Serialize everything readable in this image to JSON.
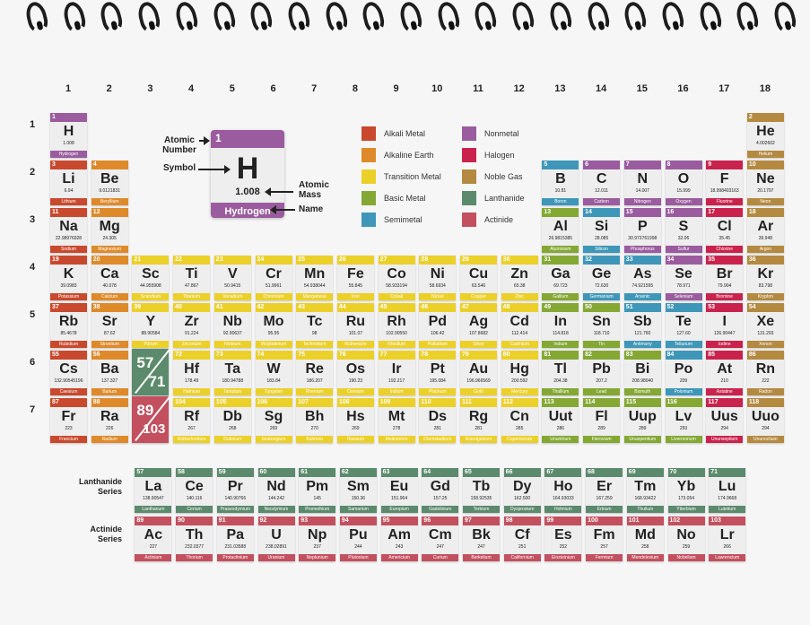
{
  "groups": [
    "1",
    "2",
    "3",
    "4",
    "5",
    "6",
    "7",
    "8",
    "9",
    "10",
    "11",
    "12",
    "13",
    "14",
    "15",
    "16",
    "17",
    "18"
  ],
  "periods": [
    "1",
    "2",
    "3",
    "4",
    "5",
    "6",
    "7"
  ],
  "colors": {
    "nonmetal": "#9a5c9e",
    "alkali": "#c8492d",
    "alkaline": "#de8a2a",
    "transition": "#ecd02a",
    "basic": "#84a833",
    "semimetal": "#3e97b8",
    "halogen": "#c9234d",
    "noble": "#b38a40",
    "lanthanide": "#5c8a6c",
    "actinide": "#c2505e"
  },
  "key": {
    "number": "1",
    "symbol": "H",
    "mass": "1.008",
    "name": "Hydrogen",
    "atomic_number_label": "Atomic Number",
    "symbol_label": "Symbol",
    "atomic_mass_label": "Atomic Mass",
    "name_label": "Name"
  },
  "legend": [
    {
      "label": "Alkali Metal",
      "cat": "alkali"
    },
    {
      "label": "Alkaline Earth",
      "cat": "alkaline"
    },
    {
      "label": "Transition Metal",
      "cat": "transition"
    },
    {
      "label": "Basic Metal",
      "cat": "basic"
    },
    {
      "label": "Semimetal",
      "cat": "semimetal"
    },
    {
      "label": "Nonmetal",
      "cat": "nonmetal"
    },
    {
      "label": "Halogen",
      "cat": "halogen"
    },
    {
      "label": "Noble Gas",
      "cat": "noble"
    },
    {
      "label": "Lanthanide",
      "cat": "lanthanide"
    },
    {
      "label": "Actinide",
      "cat": "actinide"
    }
  ],
  "placeholders": [
    {
      "a": "57",
      "b": "71",
      "cat": "lanthanide"
    },
    {
      "a": "89",
      "b": "103",
      "cat": "actinide"
    }
  ],
  "series_labels": {
    "lanthanide": "Lanthanide Series",
    "actinide": "Actinide Series"
  },
  "elements": [
    {
      "n": "1",
      "s": "H",
      "m": "1.008",
      "name": "Hydrogen",
      "g": 1,
      "p": 1,
      "cat": "nonmetal"
    },
    {
      "n": "2",
      "s": "He",
      "m": "4.002602",
      "name": "Helium",
      "g": 18,
      "p": 1,
      "cat": "noble"
    },
    {
      "n": "3",
      "s": "Li",
      "m": "6.94",
      "name": "Lithium",
      "g": 1,
      "p": 2,
      "cat": "alkali"
    },
    {
      "n": "4",
      "s": "Be",
      "m": "9.0121831",
      "name": "Beryllium",
      "g": 2,
      "p": 2,
      "cat": "alkaline"
    },
    {
      "n": "5",
      "s": "B",
      "m": "10.81",
      "name": "Boron",
      "g": 13,
      "p": 2,
      "cat": "semimetal"
    },
    {
      "n": "6",
      "s": "C",
      "m": "12.011",
      "name": "Carbon",
      "g": 14,
      "p": 2,
      "cat": "nonmetal"
    },
    {
      "n": "7",
      "s": "N",
      "m": "14.007",
      "name": "Nitrogen",
      "g": 15,
      "p": 2,
      "cat": "nonmetal"
    },
    {
      "n": "8",
      "s": "O",
      "m": "15.999",
      "name": "Oxygen",
      "g": 16,
      "p": 2,
      "cat": "nonmetal"
    },
    {
      "n": "9",
      "s": "F",
      "m": "18.998403163",
      "name": "Fluorine",
      "g": 17,
      "p": 2,
      "cat": "halogen"
    },
    {
      "n": "10",
      "s": "Ne",
      "m": "20.1797",
      "name": "Neon",
      "g": 18,
      "p": 2,
      "cat": "noble"
    },
    {
      "n": "11",
      "s": "Na",
      "m": "22.98976928",
      "name": "Sodium",
      "g": 1,
      "p": 3,
      "cat": "alkali"
    },
    {
      "n": "12",
      "s": "Mg",
      "m": "24.305",
      "name": "Magnesium",
      "g": 2,
      "p": 3,
      "cat": "alkaline"
    },
    {
      "n": "13",
      "s": "Al",
      "m": "26.9815385",
      "name": "Aluminium",
      "g": 13,
      "p": 3,
      "cat": "basic"
    },
    {
      "n": "14",
      "s": "Si",
      "m": "28.085",
      "name": "Silicon",
      "g": 14,
      "p": 3,
      "cat": "semimetal"
    },
    {
      "n": "15",
      "s": "P",
      "m": "30.973761998",
      "name": "Phosphorus",
      "g": 15,
      "p": 3,
      "cat": "nonmetal"
    },
    {
      "n": "16",
      "s": "S",
      "m": "32.06",
      "name": "Sulfur",
      "g": 16,
      "p": 3,
      "cat": "nonmetal"
    },
    {
      "n": "17",
      "s": "Cl",
      "m": "35.45",
      "name": "Chlorine",
      "g": 17,
      "p": 3,
      "cat": "halogen"
    },
    {
      "n": "18",
      "s": "Ar",
      "m": "39.948",
      "name": "Argon",
      "g": 18,
      "p": 3,
      "cat": "noble"
    },
    {
      "n": "19",
      "s": "K",
      "m": "39.0983",
      "name": "Potassium",
      "g": 1,
      "p": 4,
      "cat": "alkali"
    },
    {
      "n": "20",
      "s": "Ca",
      "m": "40.078",
      "name": "Calcium",
      "g": 2,
      "p": 4,
      "cat": "alkaline"
    },
    {
      "n": "21",
      "s": "Sc",
      "m": "44.955908",
      "name": "Scandium",
      "g": 3,
      "p": 4,
      "cat": "transition"
    },
    {
      "n": "22",
      "s": "Ti",
      "m": "47.867",
      "name": "Titanium",
      "g": 4,
      "p": 4,
      "cat": "transition"
    },
    {
      "n": "23",
      "s": "V",
      "m": "50.9415",
      "name": "Vanadium",
      "g": 5,
      "p": 4,
      "cat": "transition"
    },
    {
      "n": "24",
      "s": "Cr",
      "m": "51.9961",
      "name": "Chromium",
      "g": 6,
      "p": 4,
      "cat": "transition"
    },
    {
      "n": "25",
      "s": "Mn",
      "m": "54.938044",
      "name": "Manganese",
      "g": 7,
      "p": 4,
      "cat": "transition"
    },
    {
      "n": "26",
      "s": "Fe",
      "m": "55.845",
      "name": "Iron",
      "g": 8,
      "p": 4,
      "cat": "transition"
    },
    {
      "n": "27",
      "s": "Co",
      "m": "58.933194",
      "name": "Cobalt",
      "g": 9,
      "p": 4,
      "cat": "transition"
    },
    {
      "n": "28",
      "s": "Ni",
      "m": "58.6934",
      "name": "Nickel",
      "g": 10,
      "p": 4,
      "cat": "transition"
    },
    {
      "n": "29",
      "s": "Cu",
      "m": "63.546",
      "name": "Copper",
      "g": 11,
      "p": 4,
      "cat": "transition"
    },
    {
      "n": "30",
      "s": "Zn",
      "m": "65.38",
      "name": "Zinc",
      "g": 12,
      "p": 4,
      "cat": "transition"
    },
    {
      "n": "31",
      "s": "Ga",
      "m": "69.723",
      "name": "Gallium",
      "g": 13,
      "p": 4,
      "cat": "basic"
    },
    {
      "n": "32",
      "s": "Ge",
      "m": "72.630",
      "name": "Germanium",
      "g": 14,
      "p": 4,
      "cat": "semimetal"
    },
    {
      "n": "33",
      "s": "As",
      "m": "74.921595",
      "name": "Arsenic",
      "g": 15,
      "p": 4,
      "cat": "semimetal"
    },
    {
      "n": "34",
      "s": "Se",
      "m": "78.971",
      "name": "Selenium",
      "g": 16,
      "p": 4,
      "cat": "nonmetal"
    },
    {
      "n": "35",
      "s": "Br",
      "m": "79.904",
      "name": "Bromine",
      "g": 17,
      "p": 4,
      "cat": "halogen"
    },
    {
      "n": "36",
      "s": "Kr",
      "m": "83.798",
      "name": "Krypton",
      "g": 18,
      "p": 4,
      "cat": "noble"
    },
    {
      "n": "37",
      "s": "Rb",
      "m": "85.4678",
      "name": "Rubidium",
      "g": 1,
      "p": 5,
      "cat": "alkali"
    },
    {
      "n": "38",
      "s": "Sr",
      "m": "87.62",
      "name": "Strontium",
      "g": 2,
      "p": 5,
      "cat": "alkaline"
    },
    {
      "n": "39",
      "s": "Y",
      "m": "88.90584",
      "name": "Yttrium",
      "g": 3,
      "p": 5,
      "cat": "transition"
    },
    {
      "n": "40",
      "s": "Zr",
      "m": "91.224",
      "name": "Zirconium",
      "g": 4,
      "p": 5,
      "cat": "transition"
    },
    {
      "n": "41",
      "s": "Nb",
      "m": "92.90637",
      "name": "Niobium",
      "g": 5,
      "p": 5,
      "cat": "transition"
    },
    {
      "n": "42",
      "s": "Mo",
      "m": "95.95",
      "name": "Molybdenum",
      "g": 6,
      "p": 5,
      "cat": "transition"
    },
    {
      "n": "43",
      "s": "Tc",
      "m": "98",
      "name": "Technetium",
      "g": 7,
      "p": 5,
      "cat": "transition"
    },
    {
      "n": "44",
      "s": "Ru",
      "m": "101.07",
      "name": "Ruthenium",
      "g": 8,
      "p": 5,
      "cat": "transition"
    },
    {
      "n": "45",
      "s": "Rh",
      "m": "102.90550",
      "name": "Rhodium",
      "g": 9,
      "p": 5,
      "cat": "transition"
    },
    {
      "n": "46",
      "s": "Pd",
      "m": "106.42",
      "name": "Palladium",
      "g": 10,
      "p": 5,
      "cat": "transition"
    },
    {
      "n": "47",
      "s": "Ag",
      "m": "107.8682",
      "name": "Silver",
      "g": 11,
      "p": 5,
      "cat": "transition"
    },
    {
      "n": "48",
      "s": "Cd",
      "m": "112.414",
      "name": "Cadmium",
      "g": 12,
      "p": 5,
      "cat": "transition"
    },
    {
      "n": "49",
      "s": "In",
      "m": "114.818",
      "name": "Indium",
      "g": 13,
      "p": 5,
      "cat": "basic"
    },
    {
      "n": "50",
      "s": "Sn",
      "m": "118.710",
      "name": "Tin",
      "g": 14,
      "p": 5,
      "cat": "basic"
    },
    {
      "n": "51",
      "s": "Sb",
      "m": "121.760",
      "name": "Antimony",
      "g": 15,
      "p": 5,
      "cat": "semimetal"
    },
    {
      "n": "52",
      "s": "Te",
      "m": "127.60",
      "name": "Tellurium",
      "g": 16,
      "p": 5,
      "cat": "semimetal"
    },
    {
      "n": "53",
      "s": "I",
      "m": "126.90447",
      "name": "Iodine",
      "g": 17,
      "p": 5,
      "cat": "halogen"
    },
    {
      "n": "54",
      "s": "Xe",
      "m": "131.293",
      "name": "Xenon",
      "g": 18,
      "p": 5,
      "cat": "noble"
    },
    {
      "n": "55",
      "s": "Cs",
      "m": "132.90545196",
      "name": "Caesium",
      "g": 1,
      "p": 6,
      "cat": "alkali"
    },
    {
      "n": "56",
      "s": "Ba",
      "m": "137.327",
      "name": "Barium",
      "g": 2,
      "p": 6,
      "cat": "alkaline"
    },
    {
      "n": "72",
      "s": "Hf",
      "m": "178.49",
      "name": "Hafnium",
      "g": 4,
      "p": 6,
      "cat": "transition"
    },
    {
      "n": "73",
      "s": "Ta",
      "m": "180.94788",
      "name": "Tantalum",
      "g": 5,
      "p": 6,
      "cat": "transition"
    },
    {
      "n": "74",
      "s": "W",
      "m": "183.84",
      "name": "Tungsten",
      "g": 6,
      "p": 6,
      "cat": "transition"
    },
    {
      "n": "75",
      "s": "Re",
      "m": "186.207",
      "name": "Rhenium",
      "g": 7,
      "p": 6,
      "cat": "transition"
    },
    {
      "n": "76",
      "s": "Os",
      "m": "190.23",
      "name": "Osmium",
      "g": 8,
      "p": 6,
      "cat": "transition"
    },
    {
      "n": "77",
      "s": "Ir",
      "m": "192.217",
      "name": "Iridium",
      "g": 9,
      "p": 6,
      "cat": "transition"
    },
    {
      "n": "78",
      "s": "Pt",
      "m": "195.084",
      "name": "Platinum",
      "g": 10,
      "p": 6,
      "cat": "transition"
    },
    {
      "n": "79",
      "s": "Au",
      "m": "196.966569",
      "name": "Gold",
      "g": 11,
      "p": 6,
      "cat": "transition"
    },
    {
      "n": "80",
      "s": "Hg",
      "m": "200.592",
      "name": "Mercury",
      "g": 12,
      "p": 6,
      "cat": "transition"
    },
    {
      "n": "81",
      "s": "Tl",
      "m": "204.38",
      "name": "Thallium",
      "g": 13,
      "p": 6,
      "cat": "basic"
    },
    {
      "n": "82",
      "s": "Pb",
      "m": "207.2",
      "name": "Lead",
      "g": 14,
      "p": 6,
      "cat": "basic"
    },
    {
      "n": "83",
      "s": "Bi",
      "m": "208.98040",
      "name": "Bismuth",
      "g": 15,
      "p": 6,
      "cat": "basic"
    },
    {
      "n": "84",
      "s": "Po",
      "m": "209",
      "name": "Polonium",
      "g": 16,
      "p": 6,
      "cat": "semimetal"
    },
    {
      "n": "85",
      "s": "At",
      "m": "210",
      "name": "Astatine",
      "g": 17,
      "p": 6,
      "cat": "halogen"
    },
    {
      "n": "86",
      "s": "Rn",
      "m": "222",
      "name": "Radon",
      "g": 18,
      "p": 6,
      "cat": "noble"
    },
    {
      "n": "87",
      "s": "Fr",
      "m": "223",
      "name": "Francium",
      "g": 1,
      "p": 7,
      "cat": "alkali"
    },
    {
      "n": "88",
      "s": "Ra",
      "m": "226",
      "name": "Radium",
      "g": 2,
      "p": 7,
      "cat": "alkaline"
    },
    {
      "n": "104",
      "s": "Rf",
      "m": "267",
      "name": "Rutherfordium",
      "g": 4,
      "p": 7,
      "cat": "transition"
    },
    {
      "n": "105",
      "s": "Db",
      "m": "268",
      "name": "Dubnium",
      "g": 5,
      "p": 7,
      "cat": "transition"
    },
    {
      "n": "106",
      "s": "Sg",
      "m": "269",
      "name": "Seaborgium",
      "g": 6,
      "p": 7,
      "cat": "transition"
    },
    {
      "n": "107",
      "s": "Bh",
      "m": "270",
      "name": "Bohrium",
      "g": 7,
      "p": 7,
      "cat": "transition"
    },
    {
      "n": "108",
      "s": "Hs",
      "m": "269",
      "name": "Hassium",
      "g": 8,
      "p": 7,
      "cat": "transition"
    },
    {
      "n": "109",
      "s": "Mt",
      "m": "278",
      "name": "Meitnerium",
      "g": 9,
      "p": 7,
      "cat": "transition"
    },
    {
      "n": "110",
      "s": "Ds",
      "m": "281",
      "name": "Darmstadtium",
      "g": 10,
      "p": 7,
      "cat": "transition"
    },
    {
      "n": "111",
      "s": "Rg",
      "m": "281",
      "name": "Roentgenium",
      "g": 11,
      "p": 7,
      "cat": "transition"
    },
    {
      "n": "112",
      "s": "Cn",
      "m": "285",
      "name": "Copernicium",
      "g": 12,
      "p": 7,
      "cat": "transition"
    },
    {
      "n": "113",
      "s": "Uut",
      "m": "286",
      "name": "Ununtrium",
      "g": 13,
      "p": 7,
      "cat": "basic"
    },
    {
      "n": "114",
      "s": "Fl",
      "m": "289",
      "name": "Flerovium",
      "g": 14,
      "p": 7,
      "cat": "basic"
    },
    {
      "n": "115",
      "s": "Uup",
      "m": "289",
      "name": "Ununpentium",
      "g": 15,
      "p": 7,
      "cat": "basic"
    },
    {
      "n": "116",
      "s": "Lv",
      "m": "293",
      "name": "Livermorium",
      "g": 16,
      "p": 7,
      "cat": "basic"
    },
    {
      "n": "117",
      "s": "Uus",
      "m": "294",
      "name": "Ununseptium",
      "g": 17,
      "p": 7,
      "cat": "halogen"
    },
    {
      "n": "118",
      "s": "Uuo",
      "m": "294",
      "name": "Ununoctium",
      "g": 18,
      "p": 7,
      "cat": "noble"
    }
  ],
  "lanthanides": [
    {
      "n": "57",
      "s": "La",
      "m": "138.90547",
      "name": "Lanthanum"
    },
    {
      "n": "58",
      "s": "Ce",
      "m": "140.116",
      "name": "Cerium"
    },
    {
      "n": "59",
      "s": "Pr",
      "m": "140.90766",
      "name": "Praseodymium"
    },
    {
      "n": "60",
      "s": "Nd",
      "m": "144.242",
      "name": "Neodymium"
    },
    {
      "n": "61",
      "s": "Pm",
      "m": "145",
      "name": "Promethium"
    },
    {
      "n": "62",
      "s": "Sm",
      "m": "150.36",
      "name": "Samarium"
    },
    {
      "n": "63",
      "s": "Eu",
      "m": "151.964",
      "name": "Europium"
    },
    {
      "n": "64",
      "s": "Gd",
      "m": "157.25",
      "name": "Gadolinium"
    },
    {
      "n": "65",
      "s": "Tb",
      "m": "158.92535",
      "name": "Terbium"
    },
    {
      "n": "66",
      "s": "Dy",
      "m": "162.500",
      "name": "Dysprosium"
    },
    {
      "n": "67",
      "s": "Ho",
      "m": "164.93033",
      "name": "Holmium"
    },
    {
      "n": "68",
      "s": "Er",
      "m": "167.259",
      "name": "Erbium"
    },
    {
      "n": "69",
      "s": "Tm",
      "m": "168.93422",
      "name": "Thulium"
    },
    {
      "n": "70",
      "s": "Yb",
      "m": "173.054",
      "name": "Ytterbium"
    },
    {
      "n": "71",
      "s": "Lu",
      "m": "174.9668",
      "name": "Lutetium"
    }
  ],
  "actinides": [
    {
      "n": "89",
      "s": "Ac",
      "m": "227",
      "name": "Actinium"
    },
    {
      "n": "90",
      "s": "Th",
      "m": "232.0377",
      "name": "Thorium"
    },
    {
      "n": "91",
      "s": "Pa",
      "m": "231.03588",
      "name": "Protactinium"
    },
    {
      "n": "92",
      "s": "U",
      "m": "238.02891",
      "name": "Uranium"
    },
    {
      "n": "93",
      "s": "Np",
      "m": "237",
      "name": "Neptunium"
    },
    {
      "n": "94",
      "s": "Pu",
      "m": "244",
      "name": "Plutonium"
    },
    {
      "n": "95",
      "s": "Am",
      "m": "243",
      "name": "Americium"
    },
    {
      "n": "96",
      "s": "Cm",
      "m": "247",
      "name": "Curium"
    },
    {
      "n": "97",
      "s": "Bk",
      "m": "247",
      "name": "Berkelium"
    },
    {
      "n": "98",
      "s": "Cf",
      "m": "251",
      "name": "Californium"
    },
    {
      "n": "99",
      "s": "Es",
      "m": "252",
      "name": "Einsteinium"
    },
    {
      "n": "100",
      "s": "Fm",
      "m": "257",
      "name": "Fermium"
    },
    {
      "n": "101",
      "s": "Md",
      "m": "258",
      "name": "Mendelevium"
    },
    {
      "n": "102",
      "s": "No",
      "m": "259",
      "name": "Nobelium"
    },
    {
      "n": "103",
      "s": "Lr",
      "m": "266",
      "name": "Lawrencium"
    }
  ]
}
